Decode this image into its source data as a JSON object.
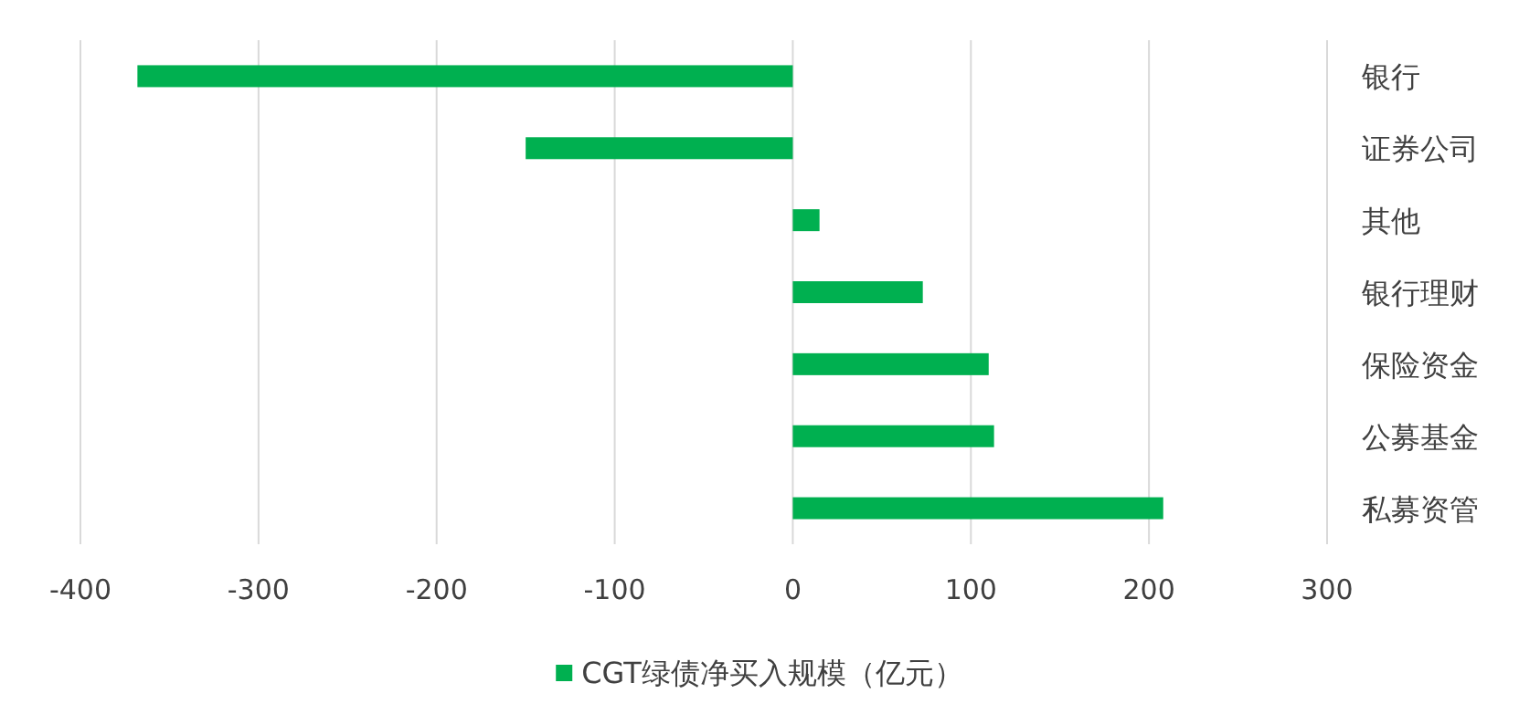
{
  "chart_data": {
    "type": "bar",
    "orientation": "horizontal",
    "categories": [
      "银行",
      "证券公司",
      "其他",
      "银行理财",
      "保险资金",
      "公募基金",
      "私募资管"
    ],
    "series": [
      {
        "name": "CGT绿债净买入规模（亿元）",
        "color": "#00b050",
        "values": [
          -368,
          -150,
          15,
          73,
          110,
          113,
          208
        ]
      }
    ],
    "xlim": [
      -400,
      300
    ],
    "xticks": [
      -400,
      -300,
      -200,
      -100,
      0,
      100,
      200,
      300
    ],
    "grid": "x",
    "legend": "bottom"
  }
}
